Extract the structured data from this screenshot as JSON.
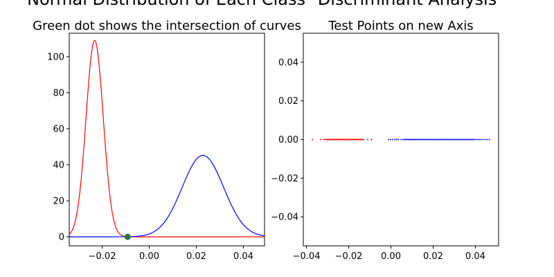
{
  "figure": {
    "suptitle_left": "Normal Distribution of Each Class",
    "suptitle_right": "Discriminant Analysis"
  },
  "chart_data": [
    {
      "type": "line",
      "title": "Green dot shows the intersection of curves",
      "xlabel": "",
      "ylabel": "",
      "xlim": [
        -0.034,
        0.049
      ],
      "ylim": [
        -5,
        113
      ],
      "xticks": [
        -0.02,
        0.0,
        0.02,
        0.04
      ],
      "xtick_labels": [
        "−0.02",
        "0.00",
        "0.02",
        "0.04"
      ],
      "yticks": [
        0,
        20,
        40,
        60,
        80,
        100
      ],
      "ytick_labels": [
        "0",
        "20",
        "40",
        "60",
        "80",
        "100"
      ],
      "grid": false,
      "series": [
        {
          "color": "#ff0000",
          "distribution": "normal",
          "mean": -0.0232,
          "peak": 109
        },
        {
          "color": "#0000ff",
          "distribution": "normal",
          "mean": 0.0228,
          "peak": 45.2
        }
      ],
      "intersection_point": {
        "x": -0.0092,
        "y": 0,
        "color": "#1f7a3a"
      }
    },
    {
      "type": "scatter",
      "title": "Test Points on new Axis",
      "xlabel": "",
      "ylabel": "",
      "xlim": [
        -0.0415,
        0.051
      ],
      "ylim": [
        -0.055,
        0.055
      ],
      "xticks": [
        -0.04,
        -0.02,
        0.0,
        0.02,
        0.04
      ],
      "xtick_labels": [
        "−0.04",
        "−0.02",
        "0.00",
        "0.02",
        "0.04"
      ],
      "yticks": [
        -0.04,
        -0.02,
        0.0,
        0.02,
        0.04
      ],
      "ytick_labels": [
        "−0.04",
        "−0.02",
        "0.00",
        "0.02",
        "0.04"
      ],
      "grid": false,
      "series": [
        {
          "color": "#ff0000",
          "y": 0,
          "x": [
            -0.0372,
            -0.0333,
            -0.0318,
            -0.0311,
            -0.0305,
            -0.03,
            -0.0296,
            -0.0292,
            -0.0288,
            -0.0284,
            -0.028,
            -0.0276,
            -0.0272,
            -0.0268,
            -0.0264,
            -0.026,
            -0.0256,
            -0.0252,
            -0.0248,
            -0.0244,
            -0.024,
            -0.0236,
            -0.0232,
            -0.0228,
            -0.0224,
            -0.022,
            -0.0216,
            -0.0212,
            -0.0208,
            -0.0204,
            -0.02,
            -0.0196,
            -0.0192,
            -0.0188,
            -0.0184,
            -0.018,
            -0.0176,
            -0.0172,
            -0.0168,
            -0.0164,
            -0.016,
            -0.0156,
            -0.0152,
            -0.0148,
            -0.0144,
            -0.014,
            -0.0135,
            -0.013,
            -0.011
          ]
        },
        {
          "color": "#0000ff",
          "y": 0,
          "x": [
            -0.0092,
            -0.0012,
            -0.0002,
            0.0008,
            0.0018,
            0.0026,
            0.0034,
            0.0048,
            0.0058,
            0.0064,
            0.007,
            0.0076,
            0.0082,
            0.0088,
            0.0094,
            0.01,
            0.0106,
            0.0112,
            0.0118,
            0.0124,
            0.013,
            0.0136,
            0.0142,
            0.0148,
            0.0154,
            0.016,
            0.0166,
            0.0172,
            0.0178,
            0.0184,
            0.019,
            0.0196,
            0.0202,
            0.0208,
            0.0214,
            0.022,
            0.0226,
            0.0232,
            0.0238,
            0.0244,
            0.025,
            0.0256,
            0.0262,
            0.0268,
            0.0274,
            0.028,
            0.0286,
            0.0292,
            0.0298,
            0.0304,
            0.031,
            0.0316,
            0.0322,
            0.0328,
            0.0334,
            0.034,
            0.0346,
            0.0352,
            0.0358,
            0.0364,
            0.037,
            0.0376,
            0.0382,
            0.0388,
            0.0394,
            0.0402,
            0.041,
            0.0418,
            0.0426,
            0.0436,
            0.0446,
            0.0456,
            0.0466
          ]
        }
      ]
    }
  ]
}
